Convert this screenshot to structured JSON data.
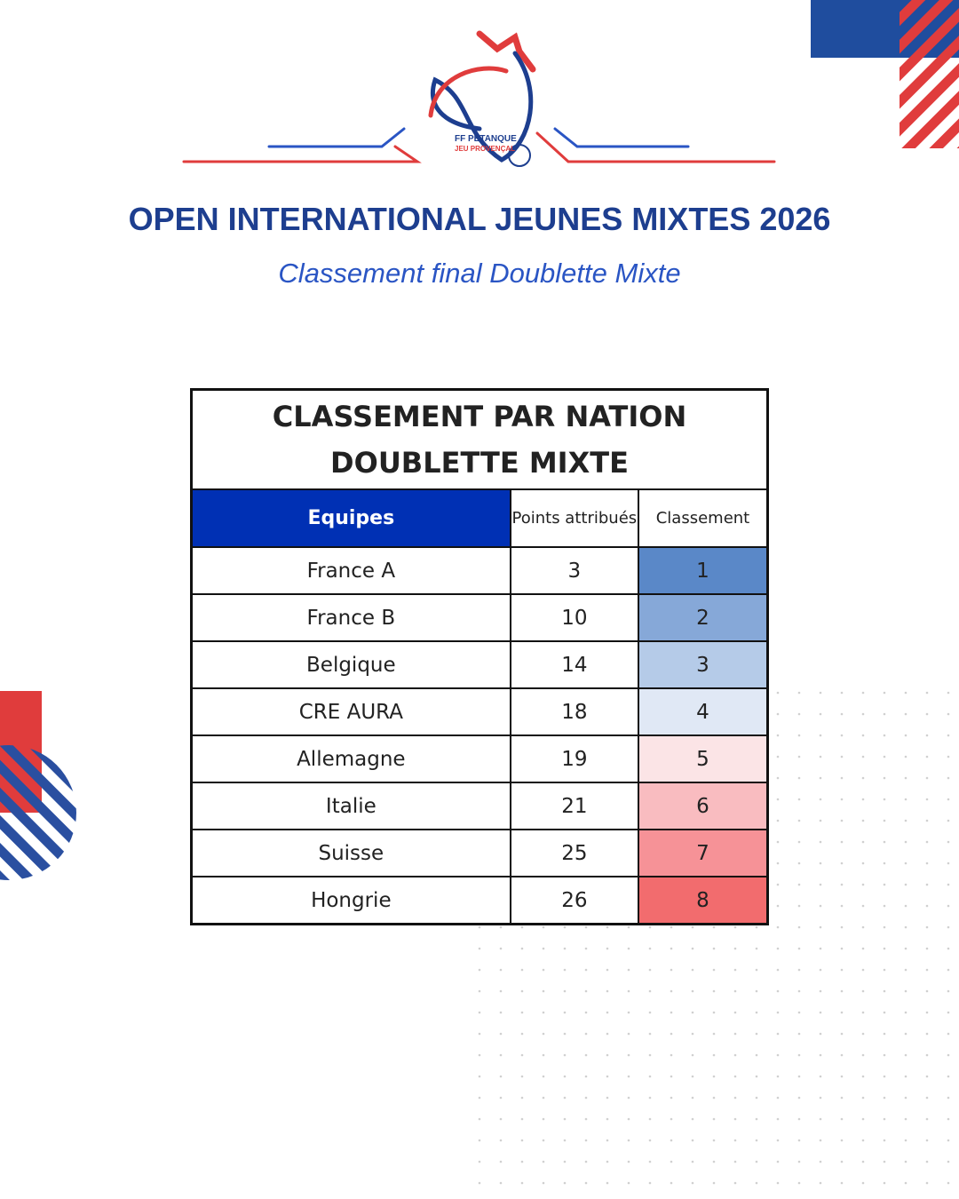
{
  "logo": {
    "line1": "FF PETANQUE",
    "line2": "JEU PROVENÇAL"
  },
  "header": {
    "title": "OPEN INTERNATIONAL JEUNES MIXTES 2026",
    "subtitle": "Classement final Doublette Mixte"
  },
  "table": {
    "title_lines": [
      "CLASSEMENT PAR NATION",
      "DOUBLETTE MIXTE"
    ],
    "columns": [
      "Equipes",
      "Points attribués",
      "Classement"
    ],
    "rows": [
      [
        "France A",
        "3",
        "1"
      ],
      [
        "France B",
        "10",
        "2"
      ],
      [
        "Belgique",
        "14",
        "3"
      ],
      [
        "CRE AURA",
        "18",
        "4"
      ],
      [
        "Allemagne",
        "19",
        "5"
      ],
      [
        "Italie",
        "21",
        "6"
      ],
      [
        "Suisse",
        "25",
        "7"
      ],
      [
        "Hongrie",
        "26",
        "8"
      ]
    ]
  }
}
